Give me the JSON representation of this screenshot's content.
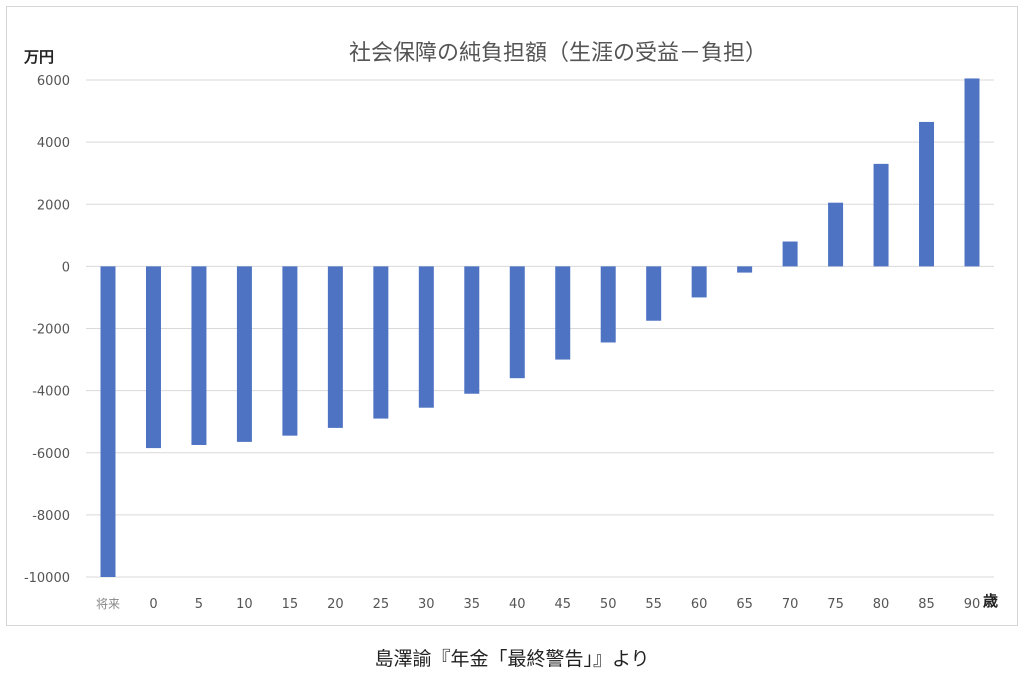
{
  "caption": "島澤諭『年金「最終警告」』より",
  "chart_data": {
    "type": "bar",
    "title": "社会保障の純負担額（生涯の受益－負担）",
    "ylabel": "万円",
    "xlabel": "歳",
    "ylim": [
      -10000,
      6000
    ],
    "yticks": [
      6000,
      4000,
      2000,
      0,
      -2000,
      -4000,
      -6000,
      -8000,
      -10000
    ],
    "grid": true,
    "bar_color": "#4f73c3",
    "categories": [
      "将来",
      "0",
      "5",
      "10",
      "15",
      "20",
      "25",
      "30",
      "35",
      "40",
      "45",
      "50",
      "55",
      "60",
      "65",
      "70",
      "75",
      "80",
      "85",
      "90"
    ],
    "values": [
      -10000,
      -5850,
      -5750,
      -5650,
      -5450,
      -5200,
      -4900,
      -4550,
      -4100,
      -3600,
      -3000,
      -2450,
      -1750,
      -1000,
      -200,
      800,
      2050,
      3300,
      4650,
      6050
    ]
  }
}
